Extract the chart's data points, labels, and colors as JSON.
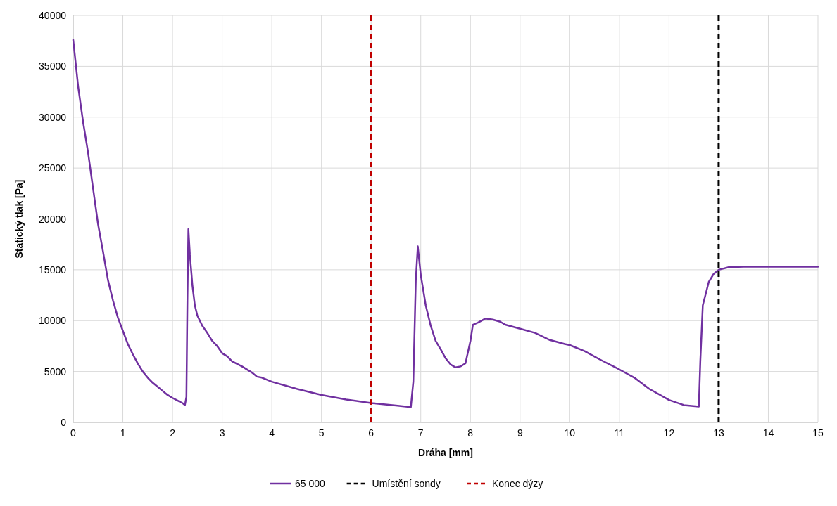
{
  "chart_data": {
    "type": "line",
    "xlabel": "Dráha [mm]",
    "ylabel": "Statický tlak [Pa]",
    "xlim": [
      0,
      15
    ],
    "xticks": [
      0,
      1,
      2,
      3,
      4,
      5,
      6,
      7,
      8,
      9,
      10,
      11,
      12,
      13,
      14,
      15
    ],
    "ylim": [
      0,
      40000
    ],
    "yticks": [
      0,
      5000,
      10000,
      15000,
      20000,
      25000,
      30000,
      35000,
      40000
    ],
    "grid": true,
    "legend": "bottom",
    "marker": "none",
    "line_style": "solid",
    "series": [
      {
        "name": "65 000",
        "color": "#7030a0",
        "x": [
          0,
          0.1,
          0.2,
          0.3,
          0.4,
          0.5,
          0.6,
          0.7,
          0.8,
          0.9,
          1.0,
          1.1,
          1.2,
          1.3,
          1.4,
          1.5,
          1.6,
          1.7,
          1.8,
          1.9,
          2.0,
          2.1,
          2.2,
          2.25,
          2.28,
          2.3,
          2.32,
          2.35,
          2.4,
          2.45,
          2.5,
          2.6,
          2.7,
          2.8,
          2.9,
          3.0,
          3.1,
          3.2,
          3.4,
          3.6,
          3.7,
          3.8,
          4.0,
          4.5,
          5.0,
          5.5,
          6.0,
          6.5,
          6.8,
          6.85,
          6.9,
          6.94,
          7.0,
          7.1,
          7.2,
          7.3,
          7.4,
          7.5,
          7.6,
          7.7,
          7.8,
          7.9,
          8.0,
          8.05,
          8.15,
          8.3,
          8.45,
          8.6,
          8.7,
          9.0,
          9.3,
          9.6,
          9.9,
          10.0,
          10.3,
          10.6,
          11.0,
          11.3,
          11.6,
          12.0,
          12.3,
          12.6,
          12.63,
          12.68,
          12.8,
          12.9,
          13.0,
          13.2,
          13.5,
          15
        ],
        "values": [
          37600,
          33000,
          29500,
          26500,
          23000,
          19500,
          16800,
          14000,
          12000,
          10300,
          9000,
          7700,
          6700,
          5800,
          5000,
          4400,
          3900,
          3500,
          3100,
          2700,
          2400,
          2150,
          1900,
          1700,
          2500,
          12000,
          19000,
          16500,
          13500,
          11500,
          10500,
          9500,
          8800,
          8000,
          7500,
          6800,
          6500,
          6000,
          5500,
          4900,
          4500,
          4400,
          4000,
          3300,
          2700,
          2250,
          1900,
          1650,
          1500,
          4000,
          14000,
          17300,
          14500,
          11500,
          9500,
          8000,
          7200,
          6300,
          5700,
          5400,
          5500,
          5800,
          8000,
          9600,
          9800,
          10200,
          10100,
          9900,
          9600,
          9200,
          8800,
          8100,
          7700,
          7600,
          7000,
          6200,
          5200,
          4400,
          3300,
          2200,
          1700,
          1550,
          6000,
          11500,
          13800,
          14600,
          15000,
          15250,
          15300,
          15300
        ]
      }
    ],
    "ref_lines": [
      {
        "axis": "x",
        "value": 13,
        "label": "Umístění sondy",
        "color": "#000000",
        "line_style": "dashed"
      },
      {
        "axis": "x",
        "value": 6,
        "label": "Konec dýzy",
        "color": "#c00000",
        "line_style": "dashed"
      }
    ]
  }
}
